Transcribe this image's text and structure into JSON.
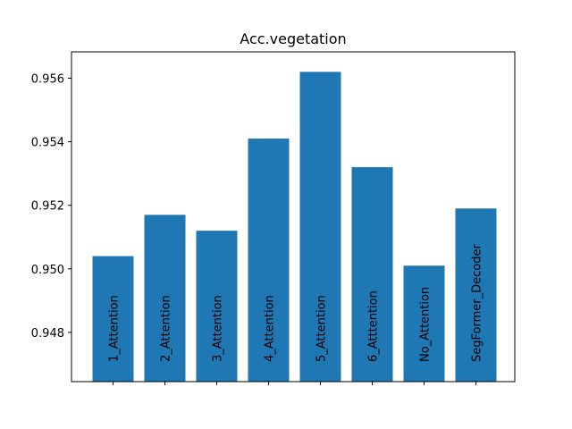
{
  "chart_data": {
    "type": "bar",
    "title": "Acc.vegetation",
    "xlabel": "",
    "ylabel": "",
    "categories": [
      "1_Attention",
      "2_Attention",
      "3_Attention",
      "4_Attention",
      "5_Attention",
      "6_Atttention",
      "No_Attention",
      "SegFormer_Decoder"
    ],
    "values": [
      0.9504,
      0.9517,
      0.9512,
      0.9541,
      0.9562,
      0.9532,
      0.9501,
      0.9519
    ],
    "ylim": [
      0.94645,
      0.95683
    ],
    "yticks": [
      0.948,
      0.95,
      0.952,
      0.954,
      0.956
    ],
    "ytick_labels": [
      "0.948",
      "0.950",
      "0.952",
      "0.954",
      "0.956"
    ],
    "bar_color": "#1f77b4",
    "grid": false,
    "legend": "none",
    "category_labels_inside_bars": true
  }
}
